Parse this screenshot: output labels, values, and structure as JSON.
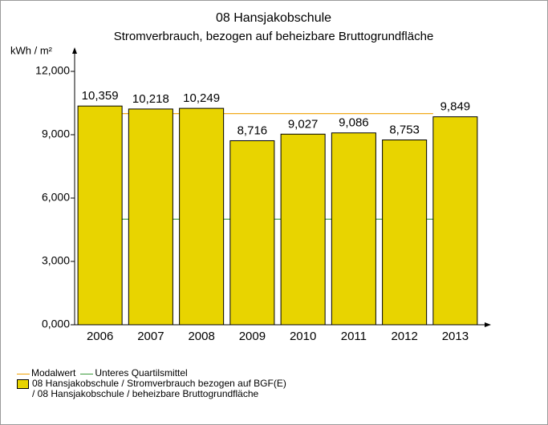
{
  "chart_data": {
    "type": "bar",
    "title": "08 Hansjakobschule",
    "subtitle": "Stromverbrauch, bezogen auf beheizbare Bruttogrundfläche",
    "y_label": "kWh / m²",
    "categories": [
      "2006",
      "2007",
      "2008",
      "2009",
      "2010",
      "2011",
      "2012",
      "2013"
    ],
    "series": [
      {
        "name": "08 Hansjakobschule / Stromverbrauch bezogen auf BGF(E)\n/ 08 Hansjakobschule / beheizbare Bruttogrundfläche",
        "color": "#e8d400",
        "values": [
          10.359,
          10.218,
          10.249,
          8.716,
          9.027,
          9.086,
          8.753,
          9.849
        ],
        "value_labels": [
          "10,359",
          "10,218",
          "10,249",
          "8,716",
          "9,027",
          "9,086",
          "8,753",
          "9,849"
        ]
      }
    ],
    "reference_lines": [
      {
        "name": "Modalwert",
        "color": "#f0a000",
        "value": 10
      },
      {
        "name": "Unteres Quartilsmittel",
        "color": "#3a9a3a",
        "value": 5
      }
    ],
    "ylim": [
      0,
      12
    ],
    "yticks": [
      {
        "value": 0,
        "label": "0,000"
      },
      {
        "value": 3,
        "label": "3,000"
      },
      {
        "value": 6,
        "label": "6,000"
      },
      {
        "value": 9,
        "label": "9,000"
      },
      {
        "value": 12,
        "label": "12,000"
      }
    ]
  }
}
